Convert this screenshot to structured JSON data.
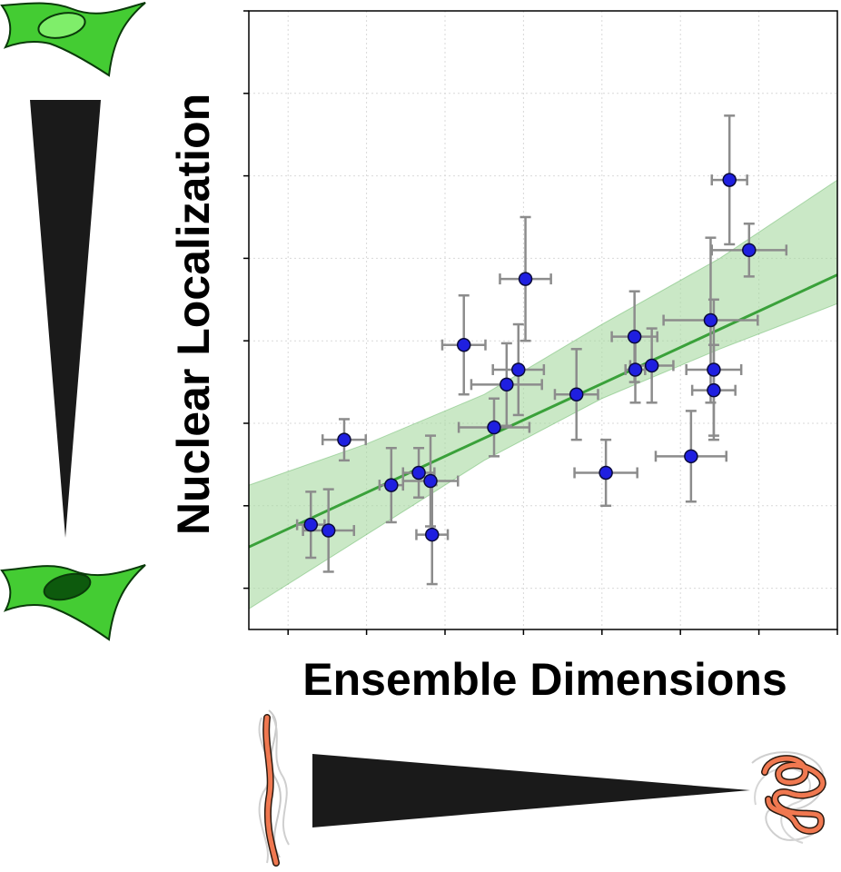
{
  "chart_data": {
    "type": "scatter",
    "title": "",
    "xlabel": "Ensemble Dimensions",
    "ylabel": "Nuclear Localization",
    "xlim": [
      0,
      15
    ],
    "ylim": [
      0,
      7.5
    ],
    "x_ticks": [
      1,
      3,
      5,
      7,
      9,
      11,
      13,
      15
    ],
    "y_ticks": [
      0.5,
      1.5,
      2.5,
      3.5,
      4.5,
      5.5,
      6.5,
      7.5
    ],
    "tick_labels_shown": false,
    "grid": true,
    "legend": "none",
    "point_color": "#1f1fe0",
    "point_edge_color": "#0a0a3a",
    "errorbar_color": "#8c8c8c",
    "fit_line_color": "#3aa13a",
    "confidence_band_color": "#a6d8a0",
    "points": [
      {
        "x": 1.58,
        "y": 1.27,
        "xerr": 0.35,
        "yerr": 0.4
      },
      {
        "x": 2.03,
        "y": 1.2,
        "xerr": 0.65,
        "yerr": 0.5
      },
      {
        "x": 2.43,
        "y": 2.3,
        "xerr": 0.55,
        "yerr": 0.25
      },
      {
        "x": 3.63,
        "y": 1.75,
        "xerr": 0.3,
        "yerr": 0.45
      },
      {
        "x": 4.33,
        "y": 1.9,
        "xerr": 0.4,
        "yerr": 0.3
      },
      {
        "x": 4.63,
        "y": 1.8,
        "xerr": 0.7,
        "yerr": 0.55
      },
      {
        "x": 4.67,
        "y": 1.15,
        "xerr": 0.4,
        "yerr": 0.6
      },
      {
        "x": 5.48,
        "y": 3.45,
        "xerr": 0.55,
        "yerr": 0.6
      },
      {
        "x": 6.25,
        "y": 2.45,
        "xerr": 0.9,
        "yerr": 0.35
      },
      {
        "x": 6.57,
        "y": 2.97,
        "xerr": 0.9,
        "yerr": 0.5
      },
      {
        "x": 6.87,
        "y": 3.15,
        "xerr": 0.65,
        "yerr": 0.55
      },
      {
        "x": 7.05,
        "y": 4.25,
        "xerr": 0.65,
        "yerr": 0.75
      },
      {
        "x": 8.35,
        "y": 2.85,
        "xerr": 0.55,
        "yerr": 0.55
      },
      {
        "x": 9.1,
        "y": 1.9,
        "xerr": 0.8,
        "yerr": 0.4
      },
      {
        "x": 9.83,
        "y": 3.55,
        "xerr": 0.58,
        "yerr": 0.55
      },
      {
        "x": 9.85,
        "y": 3.15,
        "xerr": 0.25,
        "yerr": 0.4
      },
      {
        "x": 10.27,
        "y": 3.2,
        "xerr": 0.55,
        "yerr": 0.45
      },
      {
        "x": 11.27,
        "y": 2.1,
        "xerr": 0.9,
        "yerr": 0.55
      },
      {
        "x": 11.77,
        "y": 3.75,
        "xerr": 1.2,
        "yerr": 1.0
      },
      {
        "x": 11.85,
        "y": 3.15,
        "xerr": 0.7,
        "yerr": 0.85
      },
      {
        "x": 11.85,
        "y": 2.9,
        "xerr": 0.55,
        "yerr": 0.55
      },
      {
        "x": 12.25,
        "y": 5.45,
        "xerr": 0.45,
        "yerr": 0.78
      },
      {
        "x": 12.75,
        "y": 4.6,
        "xerr": 0.95,
        "yerr": 0.32
      }
    ],
    "fit_line": {
      "x": [
        0,
        15
      ],
      "y": [
        1.0,
        4.3
      ]
    },
    "confidence_band": {
      "x": [
        0,
        3,
        6,
        9,
        12,
        15
      ],
      "lower": [
        0.25,
        1.15,
        2.05,
        2.8,
        3.4,
        3.95
      ],
      "upper": [
        1.75,
        2.25,
        2.85,
        3.7,
        4.5,
        5.45
      ]
    }
  },
  "icons": {
    "top_left": "cytoplasmic-cell-icon",
    "bottom_left": "nuclear-cell-icon",
    "left_wedge": "decreasing-wedge-icon",
    "bottom_wedge": "decreasing-wedge-icon",
    "bottom_left_chain": "extended-chain-icon",
    "bottom_right_chain": "compact-chain-icon",
    "cell_body_color": "#44cc33",
    "nucleus_light_color": "#7fee6a",
    "nucleus_dark_color": "#0d5a0d",
    "chain_color": "#f07850",
    "wedge_color": "#1a1a1a"
  }
}
